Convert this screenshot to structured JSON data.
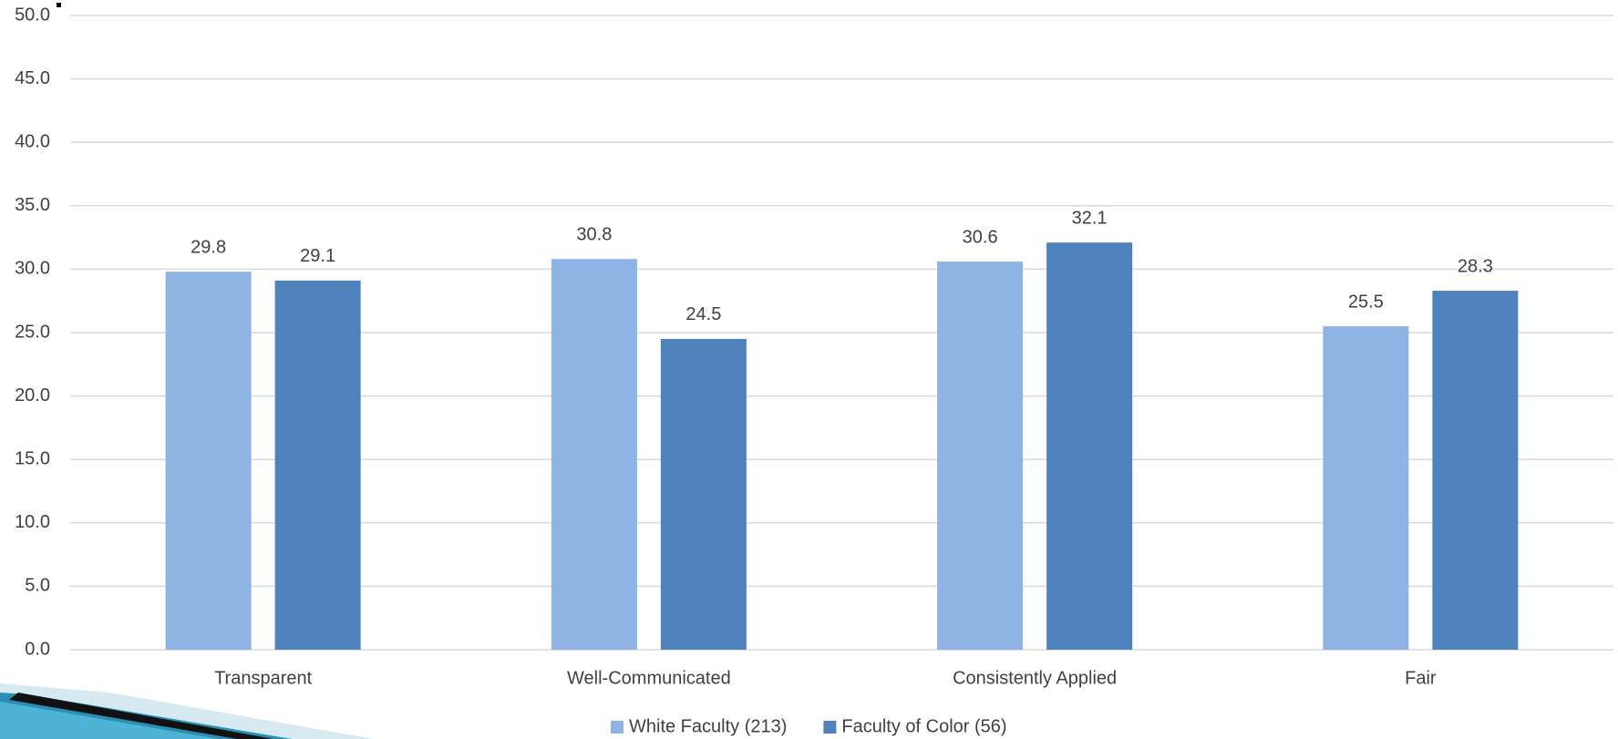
{
  "chart_data": {
    "type": "bar",
    "categories": [
      "Transparent",
      "Well-Communicated",
      "Consistently Applied",
      "Fair"
    ],
    "series": [
      {
        "name": "White Faculty (213)",
        "color": "#8fb3e2",
        "values": [
          29.8,
          30.8,
          30.6,
          25.5
        ]
      },
      {
        "name": "Faculty of Color (56)",
        "color": "#4f81bd",
        "values": [
          29.1,
          24.5,
          32.1,
          28.3
        ]
      }
    ],
    "ylim": [
      0,
      50
    ],
    "yticks": [
      {
        "value": 0,
        "label": "0.0"
      },
      {
        "value": 5,
        "label": "5.0"
      },
      {
        "value": 10,
        "label": "10.0"
      },
      {
        "value": 15,
        "label": "15.0"
      },
      {
        "value": 20,
        "label": "20.0"
      },
      {
        "value": 25,
        "label": "25.0"
      },
      {
        "value": 30,
        "label": "30.0"
      },
      {
        "value": 35,
        "label": "35.0"
      },
      {
        "value": 40,
        "label": "40.0"
      },
      {
        "value": 45,
        "label": "45.0"
      },
      {
        "value": 50,
        "label": "50.0"
      }
    ],
    "grid": true,
    "legend": "bottom"
  }
}
